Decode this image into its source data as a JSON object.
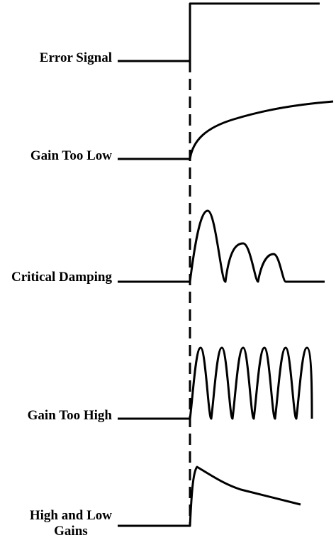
{
  "labels": {
    "error_signal": "Error Signal",
    "gain_too_low": "Gain Too Low",
    "critical_damping": "Critical Damping",
    "gain_too_high": "Gain Too High",
    "high_and_low_line1": "High and Low",
    "high_and_low_line2": "Gains"
  },
  "colors": {
    "stroke": "#000000",
    "background": "#ffffff"
  }
}
